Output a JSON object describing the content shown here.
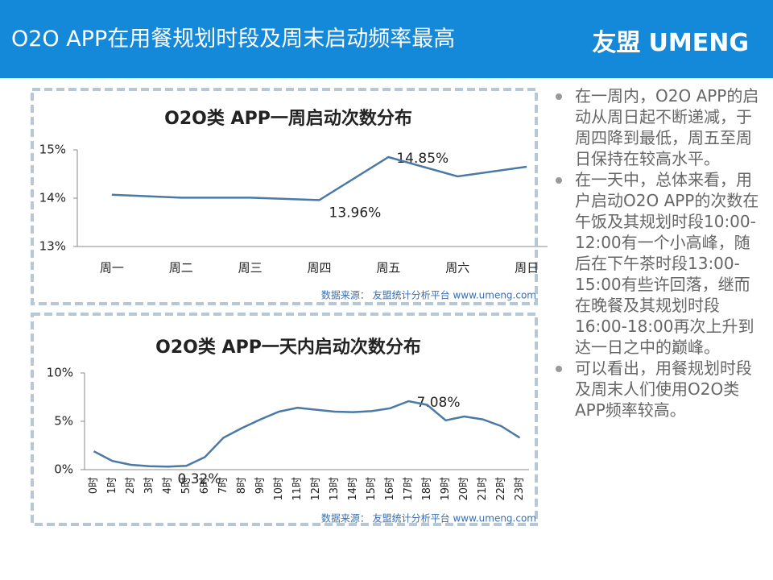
{
  "header": {
    "title": "O2O APP在用餐规划时段及周末启动频率最高",
    "logo": [
      "友盟",
      "UMENG"
    ]
  },
  "chart_data": [
    {
      "type": "line",
      "title": "O2O类 APP一周启动次数分布",
      "categories": [
        "周一",
        "周二",
        "周三",
        "周四",
        "周五",
        "周六",
        "周日"
      ],
      "values": [
        14.07,
        14.01,
        14.01,
        13.96,
        14.85,
        14.45,
        14.65
      ],
      "value_labels": [
        null,
        null,
        null,
        "13.96%",
        "14.85%",
        null,
        null
      ],
      "color": "#4a79a5",
      "ylim": [
        13,
        15
      ],
      "yticks": [
        {
          "value": 13,
          "label": "13%"
        },
        {
          "value": 14,
          "label": "14%"
        },
        {
          "value": 15,
          "label": "15%"
        }
      ],
      "grid": false,
      "source": "数据来源： 友盟统计分析平台 www.umeng.com"
    },
    {
      "type": "line",
      "title": "O2O类 APP一天内启动次数分布",
      "categories": [
        "0时",
        "1时",
        "2时",
        "3时",
        "4时",
        "5时",
        "6时",
        "7时",
        "8时",
        "9时",
        "10时",
        "11时",
        "12时",
        "13时",
        "14时",
        "15时",
        "16时",
        "17时",
        "18时",
        "19时",
        "20时",
        "21时",
        "22时",
        "23时"
      ],
      "values": [
        1.9,
        0.9,
        0.5,
        0.35,
        0.32,
        0.4,
        1.3,
        3.3,
        4.3,
        5.2,
        6.0,
        6.4,
        6.2,
        6.0,
        5.95,
        6.05,
        6.35,
        7.08,
        6.7,
        5.1,
        5.5,
        5.2,
        4.5,
        3.3
      ],
      "value_labels": [
        null,
        null,
        null,
        null,
        "0.32%",
        null,
        null,
        null,
        null,
        null,
        null,
        null,
        null,
        null,
        null,
        null,
        null,
        "7.08%",
        null,
        null,
        null,
        null,
        null,
        null
      ],
      "color": "#4a79a5",
      "ylim": [
        0,
        10
      ],
      "yticks": [
        {
          "value": 0,
          "label": "0%"
        },
        {
          "value": 5,
          "label": "5%"
        },
        {
          "value": 10,
          "label": "10%"
        }
      ],
      "grid": false,
      "source": "数据来源： 友盟统计分析平台 www.umeng.com"
    }
  ],
  "bullets": [
    "在一周内，O2O APP的启动从周日起不断递减，于周四降到最低，周五至周日保持在较高水平。",
    "在一天中，总体来看，用户启动O2O APP的次数在午饭及其规划时段10:00-12:00有一个小高峰，随后在下午茶时段13:00-15:00有些许回落，继而在晚餐及其规划时段16:00-18:00再次上升到达一日之中的巅峰。",
    "可以看出，用餐规划时段及周末人们使用O2O类APP频率较高。"
  ]
}
